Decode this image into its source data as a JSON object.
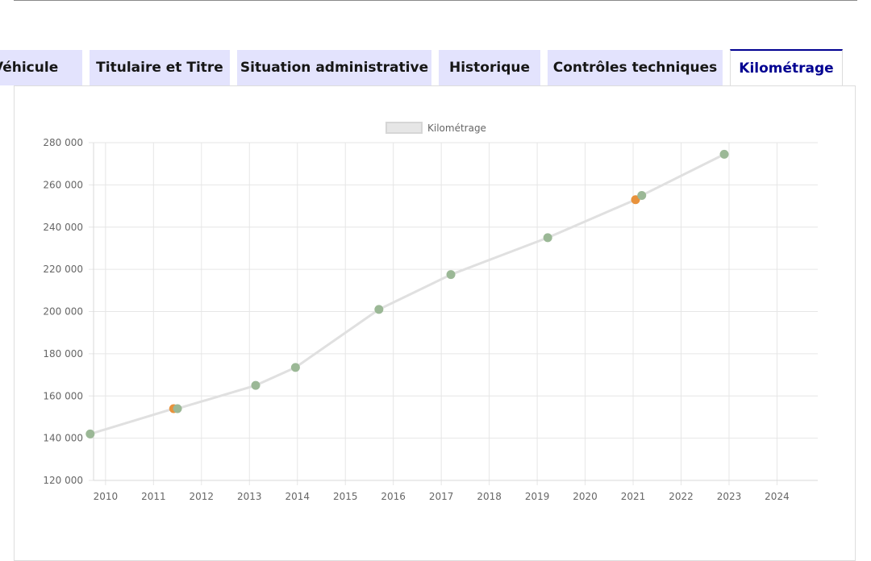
{
  "tabs": [
    {
      "label": "Véhicule",
      "active": false
    },
    {
      "label": "Titulaire et Titre",
      "active": false
    },
    {
      "label": "Situation administrative",
      "active": false
    },
    {
      "label": "Historique",
      "active": false
    },
    {
      "label": "Contrôles techniques",
      "active": false
    },
    {
      "label": "Kilométrage",
      "active": true
    }
  ],
  "colors": {
    "tab_bg": "#e3e3fd",
    "tab_active_accent": "#000091",
    "line": "#e0e0e0",
    "point_green": "#9bb896",
    "point_orange": "#e8923c",
    "grid": "#e6e6e6"
  },
  "chart_data": {
    "type": "scatter",
    "legend": [
      "Kilométrage"
    ],
    "legend_position": "top",
    "grid": true,
    "xlim": [
      2009.75,
      2024.85
    ],
    "ylim": [
      120000,
      280000
    ],
    "x_ticks": [
      "2010",
      "2011",
      "2012",
      "2013",
      "2014",
      "2015",
      "2016",
      "2017",
      "2018",
      "2019",
      "2020",
      "2021",
      "2022",
      "2023",
      "2024"
    ],
    "y_ticks": [
      "120 000",
      "140 000",
      "160 000",
      "180 000",
      "200 000",
      "220 000",
      "240 000",
      "260 000",
      "280 000"
    ],
    "series": [
      {
        "name": "Kilométrage",
        "line": true,
        "points": [
          {
            "x": 2009.68,
            "y": 142000,
            "color": "green"
          },
          {
            "x": 2011.42,
            "y": 154000,
            "color": "orange"
          },
          {
            "x": 2011.5,
            "y": 154000,
            "color": "green"
          },
          {
            "x": 2013.13,
            "y": 165000,
            "color": "green"
          },
          {
            "x": 2013.96,
            "y": 173500,
            "color": "green"
          },
          {
            "x": 2015.7,
            "y": 201000,
            "color": "green"
          },
          {
            "x": 2017.2,
            "y": 217500,
            "color": "green"
          },
          {
            "x": 2019.22,
            "y": 235000,
            "color": "green"
          },
          {
            "x": 2021.05,
            "y": 253000,
            "color": "orange"
          },
          {
            "x": 2021.18,
            "y": 255000,
            "color": "green"
          },
          {
            "x": 2022.9,
            "y": 274500,
            "color": "green"
          }
        ]
      }
    ]
  }
}
